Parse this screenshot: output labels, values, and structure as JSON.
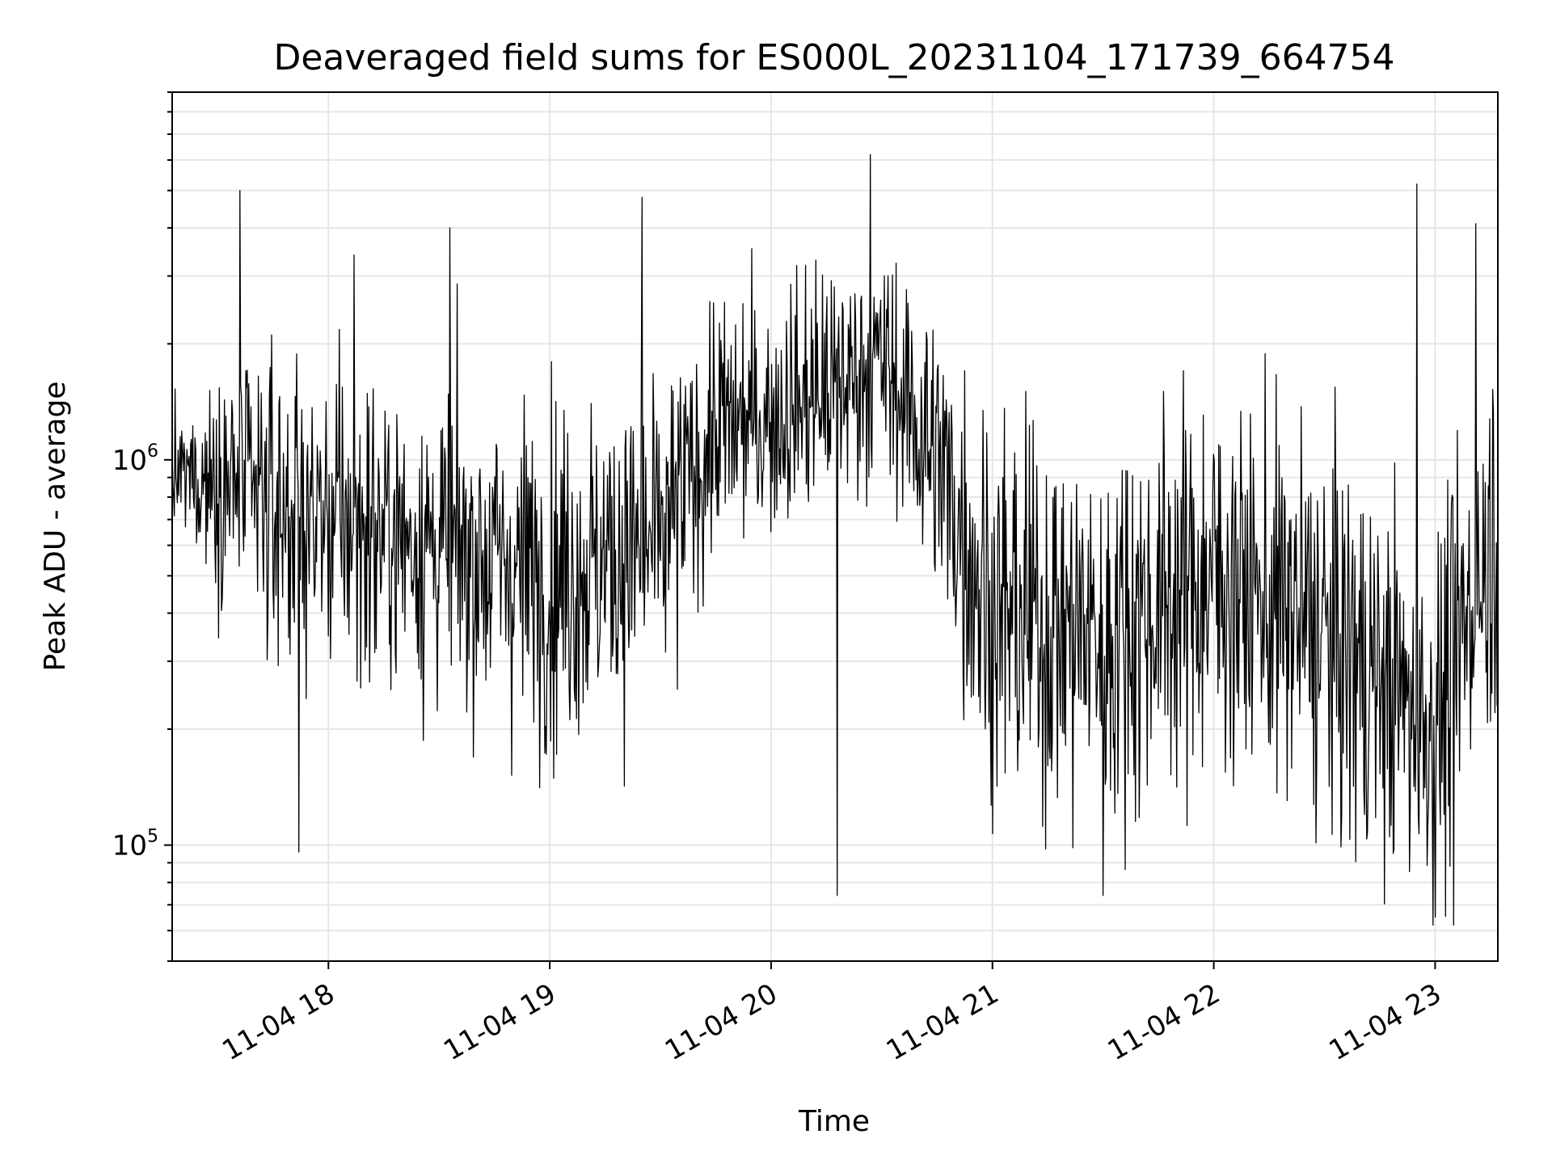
{
  "chart_data": {
    "type": "line",
    "title": "Deaveraged field sums for ES000L_20231104_171739_664754",
    "xlabel": "Time",
    "ylabel": "Peak ADU - average",
    "yscale": "log",
    "ylim": [
      50000,
      9000000
    ],
    "xlim": [
      "2023-11-04 17:17:39",
      "2023-11-04 23:17:00"
    ],
    "grid": true,
    "line_color": "#000000",
    "grid_color": "#e6e6e6",
    "x_ticks": [
      {
        "value": "2023-11-04 18:00",
        "label": "11-04 18"
      },
      {
        "value": "2023-11-04 19:00",
        "label": "11-04 19"
      },
      {
        "value": "2023-11-04 20:00",
        "label": "11-04 20"
      },
      {
        "value": "2023-11-04 21:00",
        "label": "11-04 21"
      },
      {
        "value": "2023-11-04 22:00",
        "label": "11-04 22"
      },
      {
        "value": "2023-11-04 23:00",
        "label": "11-04 23"
      }
    ],
    "y_ticks": [
      {
        "value": 100000,
        "base": "10",
        "exp": "5"
      },
      {
        "value": 1000000,
        "base": "10",
        "exp": "6"
      }
    ],
    "series": [
      {
        "x_start": "2023-11-04 17:17:39",
        "x_end": "2023-11-04 23:17:00",
        "envelope": [
          {
            "time": "2023-11-04 17:17",
            "level": 900000,
            "spread": 0.5
          },
          {
            "time": "2023-11-04 17:30",
            "level": 900000,
            "spread": 0.9
          },
          {
            "time": "2023-11-04 17:45",
            "level": 750000,
            "spread": 1.3
          },
          {
            "time": "2023-11-04 18:00",
            "level": 700000,
            "spread": 1.3
          },
          {
            "time": "2023-11-04 18:30",
            "level": 600000,
            "spread": 1.3
          },
          {
            "time": "2023-11-04 19:00",
            "level": 500000,
            "spread": 1.5
          },
          {
            "time": "2023-11-04 19:30",
            "level": 600000,
            "spread": 1.4
          },
          {
            "time": "2023-11-04 19:45",
            "level": 1200000,
            "spread": 1.1
          },
          {
            "time": "2023-11-04 20:00",
            "level": 1300000,
            "spread": 1.1
          },
          {
            "time": "2023-11-04 20:30",
            "level": 1800000,
            "spread": 1.0
          },
          {
            "time": "2023-11-04 20:45",
            "level": 1000000,
            "spread": 1.3
          },
          {
            "time": "2023-11-04 21:00",
            "level": 400000,
            "spread": 1.7
          },
          {
            "time": "2023-11-04 21:30",
            "level": 350000,
            "spread": 1.7
          },
          {
            "time": "2023-11-04 22:00",
            "level": 500000,
            "spread": 1.6
          },
          {
            "time": "2023-11-04 22:30",
            "level": 350000,
            "spread": 1.7
          },
          {
            "time": "2023-11-04 23:00",
            "level": 200000,
            "spread": 1.6
          },
          {
            "time": "2023-11-04 23:17",
            "level": 700000,
            "spread": 1.7
          }
        ],
        "extremes": [
          {
            "time": "2023-11-04 17:36",
            "value": 5000000
          },
          {
            "time": "2023-11-04 17:52",
            "value": 96000
          },
          {
            "time": "2023-11-04 18:07",
            "value": 3400000
          },
          {
            "time": "2023-11-04 18:33",
            "value": 4000000
          },
          {
            "time": "2023-11-04 19:25",
            "value": 4800000
          },
          {
            "time": "2023-11-04 20:27",
            "value": 6200000
          },
          {
            "time": "2023-11-04 20:18",
            "value": 74000
          },
          {
            "time": "2023-11-04 21:30",
            "value": 74000
          },
          {
            "time": "2023-11-04 22:55",
            "value": 5200000
          },
          {
            "time": "2023-11-04 23:00",
            "value": 65000
          },
          {
            "time": "2023-11-04 23:05",
            "value": 62000
          },
          {
            "time": "2023-11-04 23:11",
            "value": 4100000
          }
        ]
      }
    ]
  }
}
